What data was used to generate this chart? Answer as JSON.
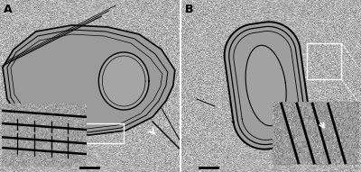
{
  "figure_width": 4.0,
  "figure_height": 1.91,
  "dpi": 100,
  "background_color": "#ffffff",
  "noise_mean_a": 175,
  "noise_std_a": 22,
  "noise_mean_b": 175,
  "noise_std_b": 22,
  "panel_A": {
    "label": "A",
    "label_fontsize": 9,
    "label_fontweight": "bold",
    "cell_interior_gray": 155,
    "nucleoid_gray": 165
  },
  "panel_B": {
    "label": "B",
    "label_fontsize": 9,
    "label_fontweight": "bold",
    "cell_interior_gray": 158,
    "nucleoid_gray": 162
  }
}
